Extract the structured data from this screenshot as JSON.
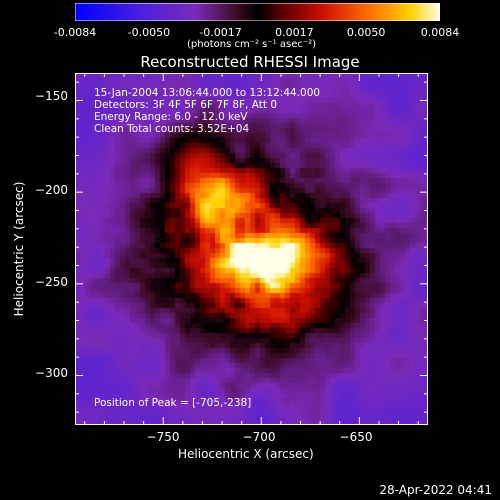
{
  "colorbar": {
    "tick_labels": [
      "-0.0084",
      "-0.0050",
      "-0.0017",
      "0.0017",
      "0.0050",
      "0.0084"
    ],
    "tick_values": [
      -0.0084,
      -0.005,
      -0.0017,
      0.0017,
      0.005,
      0.0084
    ],
    "range": [
      -0.0084,
      0.0084
    ],
    "units_label": "(photons cm⁻² s⁻¹ asec⁻²)"
  },
  "chart_data": {
    "type": "heatmap",
    "title": "Reconstructed RHESSI Image",
    "xlabel": "Heliocentric X (arcsec)",
    "ylabel": "Heliocentric Y (arcsec)",
    "xlim": [
      -795,
      -615
    ],
    "ylim": [
      -327,
      -135
    ],
    "x_ticks": [
      -750,
      -700,
      -650
    ],
    "y_ticks": [
      -150,
      -200,
      -250,
      -300
    ],
    "x_tick_labels": [
      "−750",
      "−700",
      "−650"
    ],
    "y_tick_labels": [
      "−150",
      "−200",
      "−250",
      "−300"
    ],
    "annotations": {
      "time": "15-Jan-2004 13:06:44.000 to 13:12:44.000",
      "detectors": "Detectors: 3F 4F 5F 6F 7F 8F, Att 0",
      "energy": "Energy Range: 6.0 - 12.0 keV",
      "clean": "Clean     Total counts: 3.52E+04",
      "peak": "Position of Peak = [-705,-238]"
    },
    "peak": [
      -705,
      -238
    ],
    "sources": [
      {
        "x": -705,
        "y": -238,
        "amp": 1.0,
        "sx": 13,
        "sy": 9
      },
      {
        "x": -722,
        "y": -205,
        "amp": 0.82,
        "sx": 13,
        "sy": 12
      },
      {
        "x": -680,
        "y": -235,
        "amp": 0.7,
        "sx": 15,
        "sy": 11
      },
      {
        "x": -735,
        "y": -185,
        "amp": 0.45,
        "sx": 12,
        "sy": 12
      },
      {
        "x": -690,
        "y": -262,
        "amp": 0.38,
        "sx": 16,
        "sy": 12
      }
    ]
  },
  "footer": {
    "date": "28-Apr-2022 04:41"
  }
}
